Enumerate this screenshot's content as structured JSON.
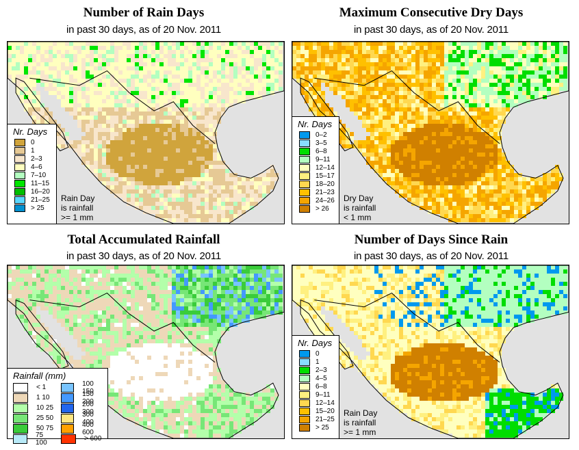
{
  "panels": [
    {
      "id": "rain-days",
      "title": "Number of Rain Days",
      "subtitle": "in past 30 days, as of  20 Nov. 2011",
      "legend_title": "Nr. Days",
      "legend": [
        {
          "label": "0",
          "color": "#d0a43c"
        },
        {
          "label": "1",
          "color": "#e6c995"
        },
        {
          "label": "2–3",
          "color": "#f8e6cc"
        },
        {
          "label": "4–6",
          "color": "#ffffbf"
        },
        {
          "label": "7–10",
          "color": "#b3ffc0"
        },
        {
          "label": "11–15",
          "color": "#00e600"
        },
        {
          "label": "16–20",
          "color": "#00bf00"
        },
        {
          "label": "21–25",
          "color": "#5ad8ff"
        },
        {
          "label": "> 25",
          "color": "#0090d0"
        }
      ],
      "note": [
        "Rain Day",
        "is rainfall",
        ">= 1 mm"
      ]
    },
    {
      "id": "max-dry-days",
      "title": "Maximum Consecutive Dry Days",
      "subtitle": "in past 30 days, as of  20 Nov. 2011",
      "legend_title": "Nr. Days",
      "legend": [
        {
          "label": "0–2",
          "color": "#0099ee"
        },
        {
          "label": "3–5",
          "color": "#88ddff"
        },
        {
          "label": "6–8",
          "color": "#00dd00"
        },
        {
          "label": "9–11",
          "color": "#b3ffc0"
        },
        {
          "label": "12–14",
          "color": "#ffffbf"
        },
        {
          "label": "15–17",
          "color": "#fff080"
        },
        {
          "label": "18–20",
          "color": "#ffd850"
        },
        {
          "label": "21–23",
          "color": "#ffc000"
        },
        {
          "label": "24–26",
          "color": "#f5a500"
        },
        {
          "label": "> 26",
          "color": "#d08000"
        }
      ],
      "note": [
        "Dry Day",
        "is rainfall",
        "< 1 mm"
      ]
    },
    {
      "id": "total-rainfall",
      "title": "Total Accumulated Rainfall",
      "subtitle": "in past 30 days, as of  20 Nov. 2011",
      "legend_title": "Rainfall (mm)",
      "legend": [
        {
          "label": "< 1",
          "color": "#ffffff"
        },
        {
          "label": "1   10",
          "color": "#eed8b8"
        },
        {
          "label": "10   25",
          "color": "#b3ffaa"
        },
        {
          "label": "25   50",
          "color": "#77e677"
        },
        {
          "label": "50   75",
          "color": "#3acc3a"
        },
        {
          "label": "75  100",
          "color": "#b8eaf8"
        },
        {
          "label": "100  150",
          "color": "#78c4ff"
        },
        {
          "label": "150  200",
          "color": "#4499ff"
        },
        {
          "label": "200  300",
          "color": "#2266ee"
        },
        {
          "label": "300  400",
          "color": "#ffe680"
        },
        {
          "label": "400  600",
          "color": "#ffa000"
        },
        {
          "label": "> 600",
          "color": "#ff3300"
        }
      ],
      "note": []
    },
    {
      "id": "days-since-rain",
      "title": "Number of Days Since Rain",
      "subtitle": "in past 30 days, as of  20 Nov. 2011",
      "legend_title": "Nr. Days",
      "legend": [
        {
          "label": "0",
          "color": "#0099ee"
        },
        {
          "label": "1",
          "color": "#88ddff"
        },
        {
          "label": "2–3",
          "color": "#00dd00"
        },
        {
          "label": "4–5",
          "color": "#b3ffc0"
        },
        {
          "label": "6–8",
          "color": "#ffffbf"
        },
        {
          "label": "9–11",
          "color": "#fff080"
        },
        {
          "label": "12–14",
          "color": "#ffd850"
        },
        {
          "label": "15–20",
          "color": "#ffc000"
        },
        {
          "label": "21–25",
          "color": "#f5a500"
        },
        {
          "label": "> 25",
          "color": "#d08000"
        }
      ],
      "note": [
        "Rain Day",
        "is rainfall",
        ">= 1 mm"
      ]
    }
  ],
  "colors": {
    "ocean": "#e2e2e2",
    "border": "#000000"
  }
}
